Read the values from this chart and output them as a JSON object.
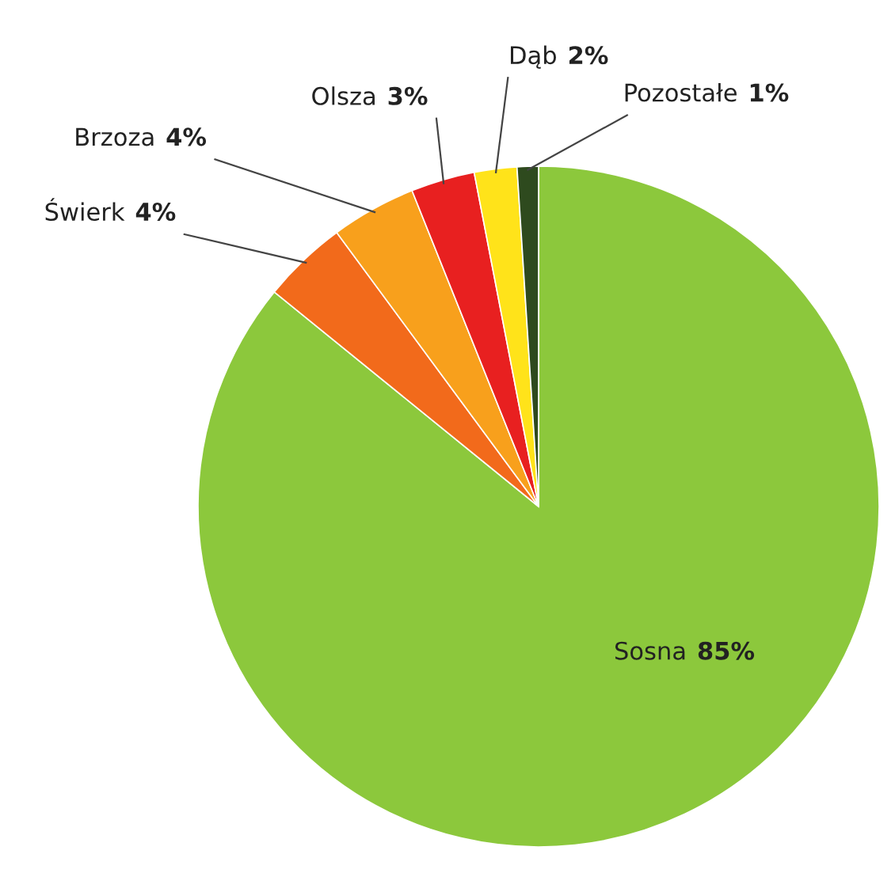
{
  "chart_data": {
    "type": "pie",
    "categories": [
      "Sosna",
      "Świerk",
      "Brzoza",
      "Olsza",
      "Dąb",
      "Pozostałe"
    ],
    "values": [
      85,
      4,
      4,
      3,
      2,
      1
    ],
    "value_labels": [
      "85%",
      "4%",
      "4%",
      "3%",
      "2%",
      "1%"
    ],
    "colors": [
      "#8cc83c",
      "#f26a1b",
      "#f8a01c",
      "#e82020",
      "#ffe31a",
      "#2e4a1e"
    ]
  }
}
